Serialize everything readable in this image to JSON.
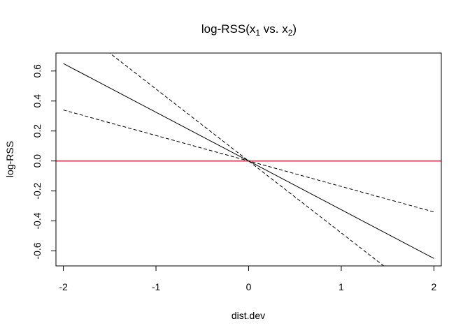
{
  "chart_data": {
    "type": "line",
    "title": {
      "prefix": "log-RSS(",
      "var1": "x",
      "sub1": "1",
      "middle": " vs. ",
      "var2": "x",
      "sub2": "2",
      "suffix": ")"
    },
    "xlabel": "dist.dev",
    "ylabel": "log-RSS",
    "xlim": [
      -2.08,
      2.08
    ],
    "ylim": [
      -0.7,
      0.72
    ],
    "x_ticks": [
      -2,
      -1,
      0,
      1,
      2
    ],
    "x_tick_labels": [
      "-2",
      "-1",
      "0",
      "1",
      "2"
    ],
    "y_ticks": [
      -0.6,
      -0.4,
      -0.2,
      0.0,
      0.2,
      0.4,
      0.6
    ],
    "y_tick_labels": [
      "-0.6",
      "-0.4",
      "-0.2",
      "0.0",
      "0.2",
      "0.4",
      "0.6"
    ],
    "grid": false,
    "series": [
      {
        "style": "solid",
        "color": "#000000",
        "points": [
          [
            -2,
            0.65
          ],
          [
            2,
            -0.65
          ]
        ]
      },
      {
        "style": "dashed",
        "color": "#000000",
        "points": [
          [
            -2,
            0.34
          ],
          [
            2,
            -0.34
          ]
        ]
      },
      {
        "style": "dashed",
        "color": "#000000",
        "points": [
          [
            -2,
            0.96
          ],
          [
            2,
            -0.96
          ]
        ]
      }
    ],
    "reference_line": {
      "y": 0,
      "color": "#DF536B"
    }
  }
}
